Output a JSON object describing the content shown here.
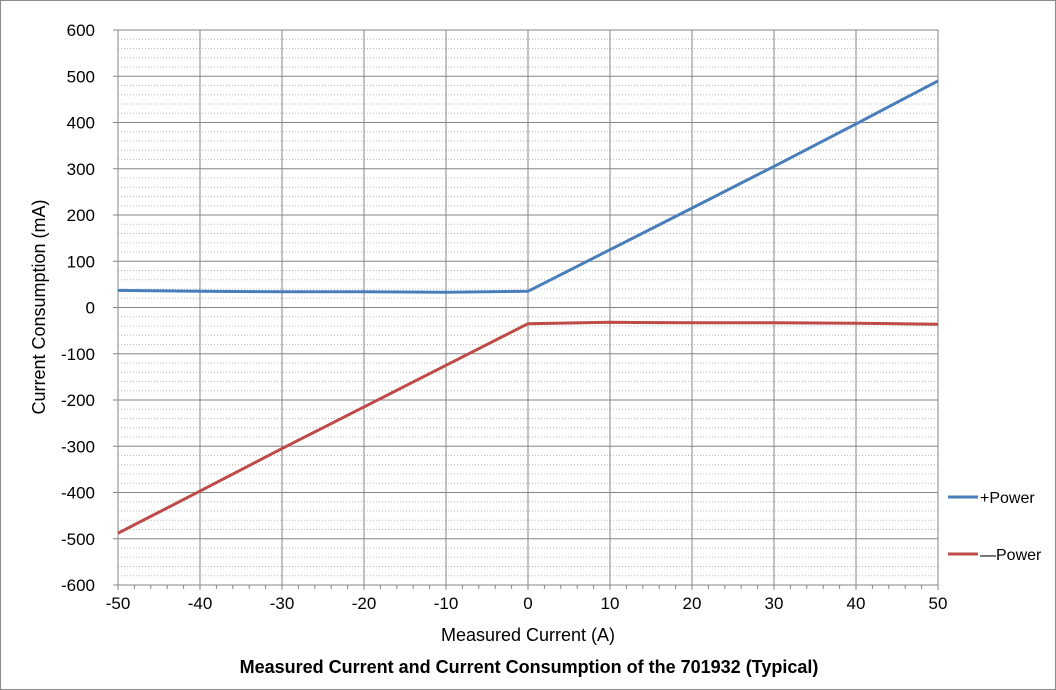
{
  "caption": "Measured Current and Current Consumption of the 701932 (Typical)",
  "chart_data": {
    "type": "line",
    "title": "",
    "xlabel": "Measured Current (A)",
    "ylabel": "Current Consumption (mA)",
    "xlim": [
      -50,
      50
    ],
    "ylim": [
      -600,
      600
    ],
    "xticks": [
      -50,
      -40,
      -30,
      -20,
      -10,
      0,
      10,
      20,
      30,
      40,
      50
    ],
    "yticks": [
      600,
      500,
      400,
      300,
      200,
      100,
      0,
      -100,
      -200,
      -300,
      -400,
      -500,
      -600
    ],
    "xtick_labels": [
      "-50",
      "-40",
      "-30",
      "-20",
      "-10",
      "0",
      "10",
      "20",
      "30",
      "40",
      "50"
    ],
    "ytick_labels": [
      "600",
      "500",
      "400",
      "300",
      "200",
      "100",
      "0",
      "-100",
      "-200",
      "-300",
      "-400",
      "-500",
      "-600"
    ],
    "grid": true,
    "minor_grid": true,
    "legend_position": "right",
    "series": [
      {
        "name": "+Power",
        "color": "#4a7ebb",
        "x": [
          -50,
          -40,
          -30,
          -20,
          -10,
          0,
          10,
          20,
          30,
          40,
          50
        ],
        "y": [
          37,
          35,
          34,
          34,
          33,
          35,
          125,
          215,
          305,
          397,
          490
        ]
      },
      {
        "name": "—Power",
        "color": "#be4b48",
        "x": [
          -50,
          -40,
          -30,
          -20,
          -10,
          0,
          10,
          20,
          30,
          40,
          50
        ],
        "y": [
          -488,
          -397,
          -305,
          -215,
          -125,
          -35,
          -32,
          -33,
          -33,
          -34,
          -36
        ]
      }
    ]
  }
}
